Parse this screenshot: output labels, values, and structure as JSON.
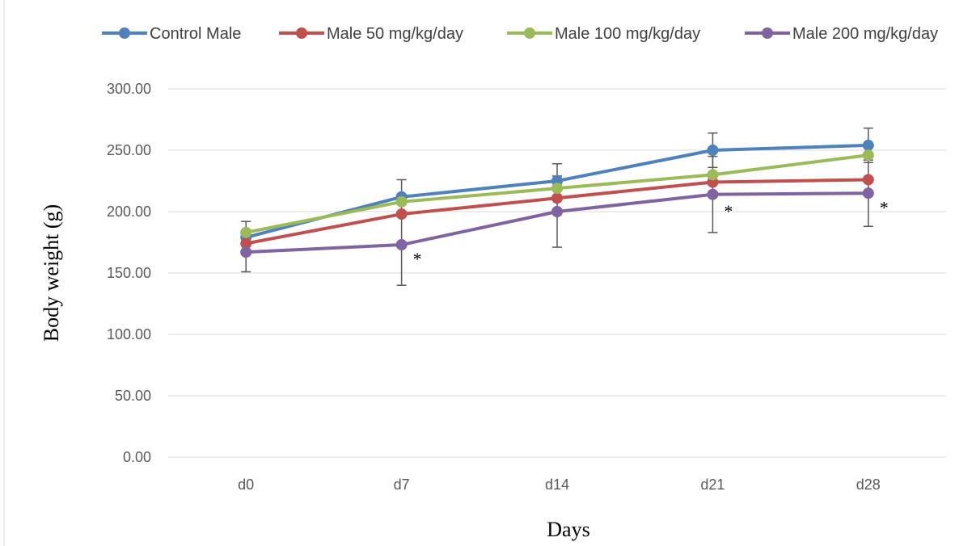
{
  "chart_data": {
    "type": "line",
    "title": "",
    "xlabel": "Days",
    "ylabel": "Body weight (g)",
    "categories": [
      "d0",
      "d7",
      "d14",
      "d21",
      "d28"
    ],
    "ylim": [
      0,
      300
    ],
    "yticks": [
      0,
      50,
      100,
      150,
      200,
      250,
      300
    ],
    "ytick_labels": [
      "0.00",
      "50.00",
      "100.00",
      "150.00",
      "200.00",
      "250.00",
      "300.00"
    ],
    "grid": "horizontal",
    "legend": "top",
    "series": [
      {
        "name": "Control Male",
        "color": "#4F81BD",
        "values": [
          179,
          212,
          225,
          250,
          254
        ],
        "error": [
          13,
          14,
          14,
          14,
          14
        ]
      },
      {
        "name": "Male 50 mg/kg/day",
        "color": "#C0504D",
        "values": [
          174,
          198,
          211,
          224,
          226
        ],
        "error": [
          null,
          null,
          null,
          null,
          null
        ]
      },
      {
        "name": "Male 100 mg/kg/day",
        "color": "#9BBB59",
        "values": [
          183,
          208,
          219,
          230,
          246
        ],
        "error": [
          null,
          null,
          null,
          null,
          null
        ]
      },
      {
        "name": "Male 200 mg/kg/day",
        "color": "#8064A2",
        "values": [
          167,
          173,
          200,
          214,
          215
        ],
        "error": [
          16,
          33,
          29,
          31,
          27
        ]
      }
    ],
    "annotations": [
      {
        "text": "*",
        "category": "d7",
        "y": 163
      },
      {
        "text": "*",
        "category": "d21",
        "y": 202
      },
      {
        "text": "*",
        "category": "d28",
        "y": 205
      }
    ]
  }
}
